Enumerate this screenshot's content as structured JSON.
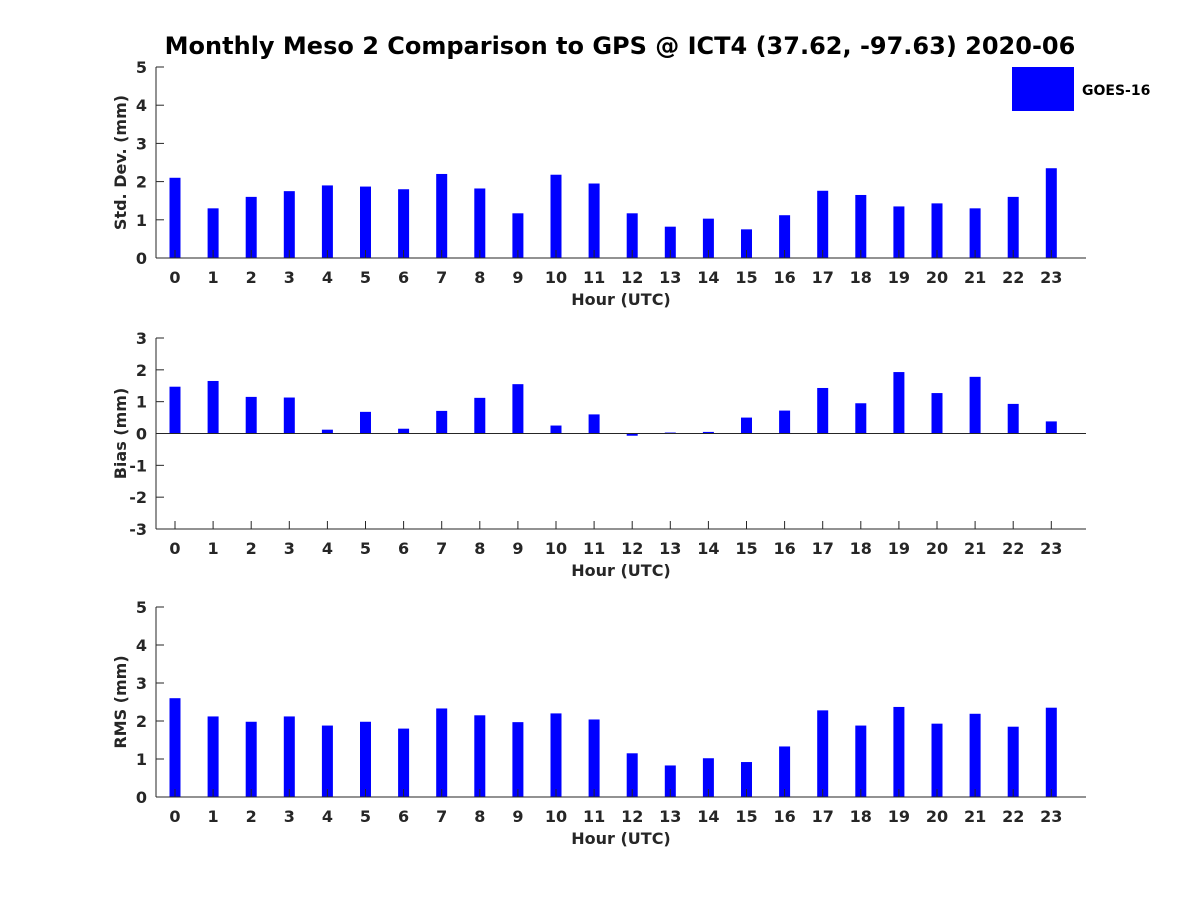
{
  "colors": {
    "bar": "#0000ff",
    "axis": "#262626",
    "background": "#ffffff"
  },
  "chart_data": {
    "type": "bar",
    "title": "Monthly Meso 2 Comparison to GPS @ ICT4 (37.62, -97.63) 2020-06",
    "legend": {
      "entries": [
        "GOES-16"
      ],
      "placement": "top-right"
    },
    "series_name": "GOES-16",
    "panels": [
      {
        "id": "std",
        "ylabel": "Std. Dev. (mm)",
        "xlabel": "Hour (UTC)",
        "ylim": [
          0,
          5
        ],
        "yticks": [
          0,
          1,
          2,
          3,
          4,
          5
        ],
        "categories": [
          "0",
          "1",
          "2",
          "3",
          "4",
          "5",
          "6",
          "7",
          "8",
          "9",
          "10",
          "11",
          "12",
          "13",
          "14",
          "15",
          "16",
          "17",
          "18",
          "19",
          "20",
          "21",
          "22",
          "23"
        ],
        "values": [
          2.1,
          1.3,
          1.6,
          1.75,
          1.9,
          1.87,
          1.8,
          2.2,
          1.82,
          1.17,
          2.18,
          1.95,
          1.17,
          0.82,
          1.03,
          0.75,
          1.12,
          1.76,
          1.65,
          1.35,
          1.43,
          1.3,
          1.6,
          2.35
        ]
      },
      {
        "id": "bias",
        "ylabel": "Bias (mm)",
        "xlabel": "Hour (UTC)",
        "ylim": [
          -3,
          3
        ],
        "yticks": [
          -3,
          -2,
          -1,
          0,
          1,
          2,
          3
        ],
        "categories": [
          "0",
          "1",
          "2",
          "3",
          "4",
          "5",
          "6",
          "7",
          "8",
          "9",
          "10",
          "11",
          "12",
          "13",
          "14",
          "15",
          "16",
          "17",
          "18",
          "19",
          "20",
          "21",
          "22",
          "23"
        ],
        "values": [
          1.47,
          1.65,
          1.15,
          1.13,
          0.12,
          0.68,
          0.15,
          0.71,
          1.12,
          1.55,
          0.25,
          0.6,
          -0.07,
          0.03,
          0.05,
          0.5,
          0.72,
          1.43,
          0.95,
          1.93,
          1.27,
          1.78,
          0.93,
          0.38
        ]
      },
      {
        "id": "rms",
        "ylabel": "RMS (mm)",
        "xlabel": "Hour (UTC)",
        "ylim": [
          0,
          5
        ],
        "yticks": [
          0,
          1,
          2,
          3,
          4,
          5
        ],
        "categories": [
          "0",
          "1",
          "2",
          "3",
          "4",
          "5",
          "6",
          "7",
          "8",
          "9",
          "10",
          "11",
          "12",
          "13",
          "14",
          "15",
          "16",
          "17",
          "18",
          "19",
          "20",
          "21",
          "22",
          "23"
        ],
        "values": [
          2.6,
          2.12,
          1.98,
          2.12,
          1.88,
          1.98,
          1.8,
          2.33,
          2.15,
          1.97,
          2.2,
          2.04,
          1.15,
          0.83,
          1.02,
          0.92,
          1.33,
          2.28,
          1.88,
          2.37,
          1.93,
          2.19,
          1.85,
          2.35
        ]
      }
    ]
  }
}
